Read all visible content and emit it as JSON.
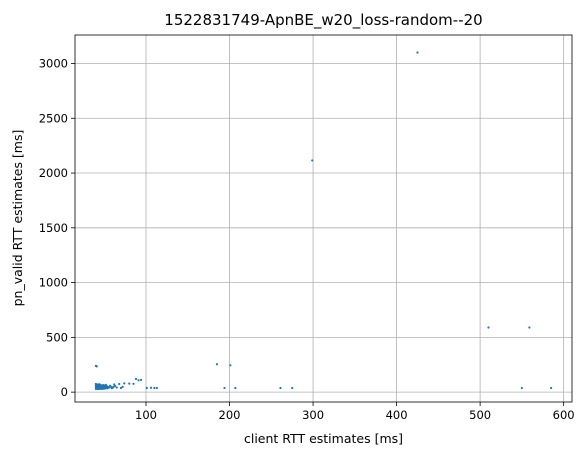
{
  "chart_data": {
    "type": "scatter",
    "title": "1522831749-ApnBE_w20_loss-random--20",
    "xlabel": "client RTT estimates [ms]",
    "ylabel": "pn_valid RTT estimates [ms]",
    "xlim": [
      15,
      610
    ],
    "ylim": [
      -90,
      3260
    ],
    "xticks": [
      100,
      200,
      300,
      400,
      500,
      600
    ],
    "yticks": [
      0,
      500,
      1000,
      1500,
      2000,
      2500,
      3000
    ],
    "grid": true,
    "point_color": "#1f77b4",
    "points": [
      [
        425,
        3100
      ],
      [
        299,
        2115
      ],
      [
        510,
        590
      ],
      [
        559,
        590
      ],
      [
        185,
        255
      ],
      [
        201,
        245
      ],
      [
        40,
        240
      ],
      [
        41,
        235
      ],
      [
        550,
        38
      ],
      [
        585,
        38
      ],
      [
        194,
        38
      ],
      [
        207,
        38
      ],
      [
        261,
        38
      ],
      [
        275,
        38
      ],
      [
        101,
        38
      ],
      [
        106,
        40
      ],
      [
        110,
        38
      ],
      [
        113,
        38
      ],
      [
        88,
        120
      ],
      [
        91,
        108
      ],
      [
        94,
        112
      ],
      [
        74,
        80
      ],
      [
        80,
        78
      ],
      [
        85,
        76
      ],
      [
        68,
        74
      ],
      [
        62,
        70
      ],
      [
        55,
        45
      ],
      [
        58,
        50
      ],
      [
        60,
        40
      ],
      [
        63,
        55
      ],
      [
        65,
        42
      ],
      [
        70,
        38
      ],
      [
        72,
        48
      ],
      [
        40,
        30
      ],
      [
        40,
        45
      ],
      [
        40,
        60
      ],
      [
        40,
        75
      ],
      [
        41,
        35
      ],
      [
        41,
        50
      ],
      [
        41,
        65
      ],
      [
        42,
        28
      ],
      [
        42,
        40
      ],
      [
        42,
        55
      ],
      [
        42,
        70
      ],
      [
        43,
        32
      ],
      [
        43,
        48
      ],
      [
        43,
        62
      ],
      [
        44,
        30
      ],
      [
        44,
        45
      ],
      [
        44,
        58
      ],
      [
        44,
        72
      ],
      [
        45,
        35
      ],
      [
        45,
        50
      ],
      [
        45,
        66
      ],
      [
        46,
        30
      ],
      [
        46,
        42
      ],
      [
        46,
        56
      ],
      [
        47,
        34
      ],
      [
        47,
        48
      ],
      [
        47,
        62
      ],
      [
        48,
        30
      ],
      [
        48,
        44
      ],
      [
        48,
        58
      ],
      [
        49,
        36
      ],
      [
        49,
        50
      ],
      [
        49,
        64
      ],
      [
        50,
        32
      ],
      [
        50,
        46
      ],
      [
        50,
        60
      ],
      [
        51,
        38
      ],
      [
        51,
        52
      ],
      [
        52,
        34
      ],
      [
        52,
        48
      ],
      [
        52,
        66
      ],
      [
        53,
        40
      ],
      [
        53,
        55
      ],
      [
        54,
        36
      ],
      [
        54,
        50
      ],
      [
        56,
        42
      ],
      [
        57,
        58
      ],
      [
        59,
        36
      ],
      [
        61,
        48
      ]
    ]
  }
}
